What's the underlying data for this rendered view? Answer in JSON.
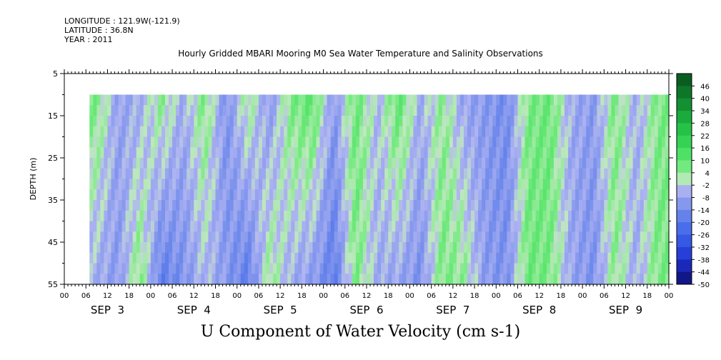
{
  "header": {
    "longitude": "LONGITUDE : 121.9W(-121.9)",
    "latitude": "LATITUDE : 36.8N",
    "year": "YEAR : 2011"
  },
  "chart_data": {
    "type": "heatmap",
    "title": "Hourly Gridded MBARI Mooring M0 Sea Water Temperature and Salinity Observations",
    "xlabel": "U Component of Water Velocity (cm s-1)",
    "ylabel": "DEPTH (m)",
    "ylim": [
      55,
      5
    ],
    "y_ticks": [
      5,
      15,
      25,
      35,
      45,
      55
    ],
    "data_depth_range": [
      10,
      55
    ],
    "x_hour_labels": [
      "00",
      "06",
      "12",
      "18",
      "00",
      "06",
      "12",
      "18",
      "00",
      "06",
      "12",
      "18",
      "00",
      "06",
      "12",
      "18",
      "00",
      "06",
      "12",
      "18",
      "00",
      "06",
      "12",
      "18",
      "00",
      "06",
      "12",
      "18",
      "00"
    ],
    "x_day_labels": [
      "SEP  3",
      "SEP  4",
      "SEP  5",
      "SEP  6",
      "SEP  7",
      "SEP  8",
      "SEP  9"
    ],
    "data_start": "SEP 3 07:00",
    "data_end": "SEP 10 00:00",
    "colorbar_ticks": [
      "46",
      "40",
      "34",
      "28",
      "22",
      "16",
      "10",
      "4",
      "-2",
      "-8",
      "-14",
      "-20",
      "-26",
      "-32",
      "-38",
      "-44",
      "-50"
    ],
    "colorbar_range": [
      -50,
      52
    ],
    "column_velocity_profile_cm_s": [
      {
        "time": "SEP 3 09",
        "surface": 6,
        "bottom": -6
      },
      {
        "time": "SEP 3 15",
        "surface": -8,
        "bottom": -10
      },
      {
        "time": "SEP 3 21",
        "surface": -6,
        "bottom": 6
      },
      {
        "time": "SEP 4 03",
        "surface": 5,
        "bottom": -18
      },
      {
        "time": "SEP 4 09",
        "surface": -6,
        "bottom": -12
      },
      {
        "time": "SEP 4 15",
        "surface": 6,
        "bottom": -4
      },
      {
        "time": "SEP 4 21",
        "surface": -12,
        "bottom": -10
      },
      {
        "time": "SEP 5 03",
        "surface": 4,
        "bottom": -18
      },
      {
        "time": "SEP 5 09",
        "surface": -10,
        "bottom": 4
      },
      {
        "time": "SEP 5 15",
        "surface": 6,
        "bottom": -6
      },
      {
        "time": "SEP 5 21",
        "surface": 10,
        "bottom": -10
      },
      {
        "time": "SEP 6 03",
        "surface": -10,
        "bottom": -18
      },
      {
        "time": "SEP 6 09",
        "surface": 8,
        "bottom": 6
      },
      {
        "time": "SEP 6 15",
        "surface": -4,
        "bottom": -6
      },
      {
        "time": "SEP 6 21",
        "surface": 10,
        "bottom": -8
      },
      {
        "time": "SEP 7 03",
        "surface": -6,
        "bottom": -12
      },
      {
        "time": "SEP 7 09",
        "surface": 4,
        "bottom": 6
      },
      {
        "time": "SEP 7 15",
        "surface": -8,
        "bottom": 4
      },
      {
        "time": "SEP 7 21",
        "surface": -10,
        "bottom": -10
      },
      {
        "time": "SEP 8 03",
        "surface": -14,
        "bottom": -12
      },
      {
        "time": "SEP 8 09",
        "surface": 6,
        "bottom": 8
      },
      {
        "time": "SEP 8 15",
        "surface": 8,
        "bottom": 6
      },
      {
        "time": "SEP 8 21",
        "surface": -6,
        "bottom": -8
      },
      {
        "time": "SEP 9 03",
        "surface": -10,
        "bottom": -12
      },
      {
        "time": "SEP 9 09",
        "surface": 6,
        "bottom": 4
      },
      {
        "time": "SEP 9 15",
        "surface": -6,
        "bottom": -6
      },
      {
        "time": "SEP 9 21",
        "surface": 6,
        "bottom": 6
      }
    ]
  }
}
